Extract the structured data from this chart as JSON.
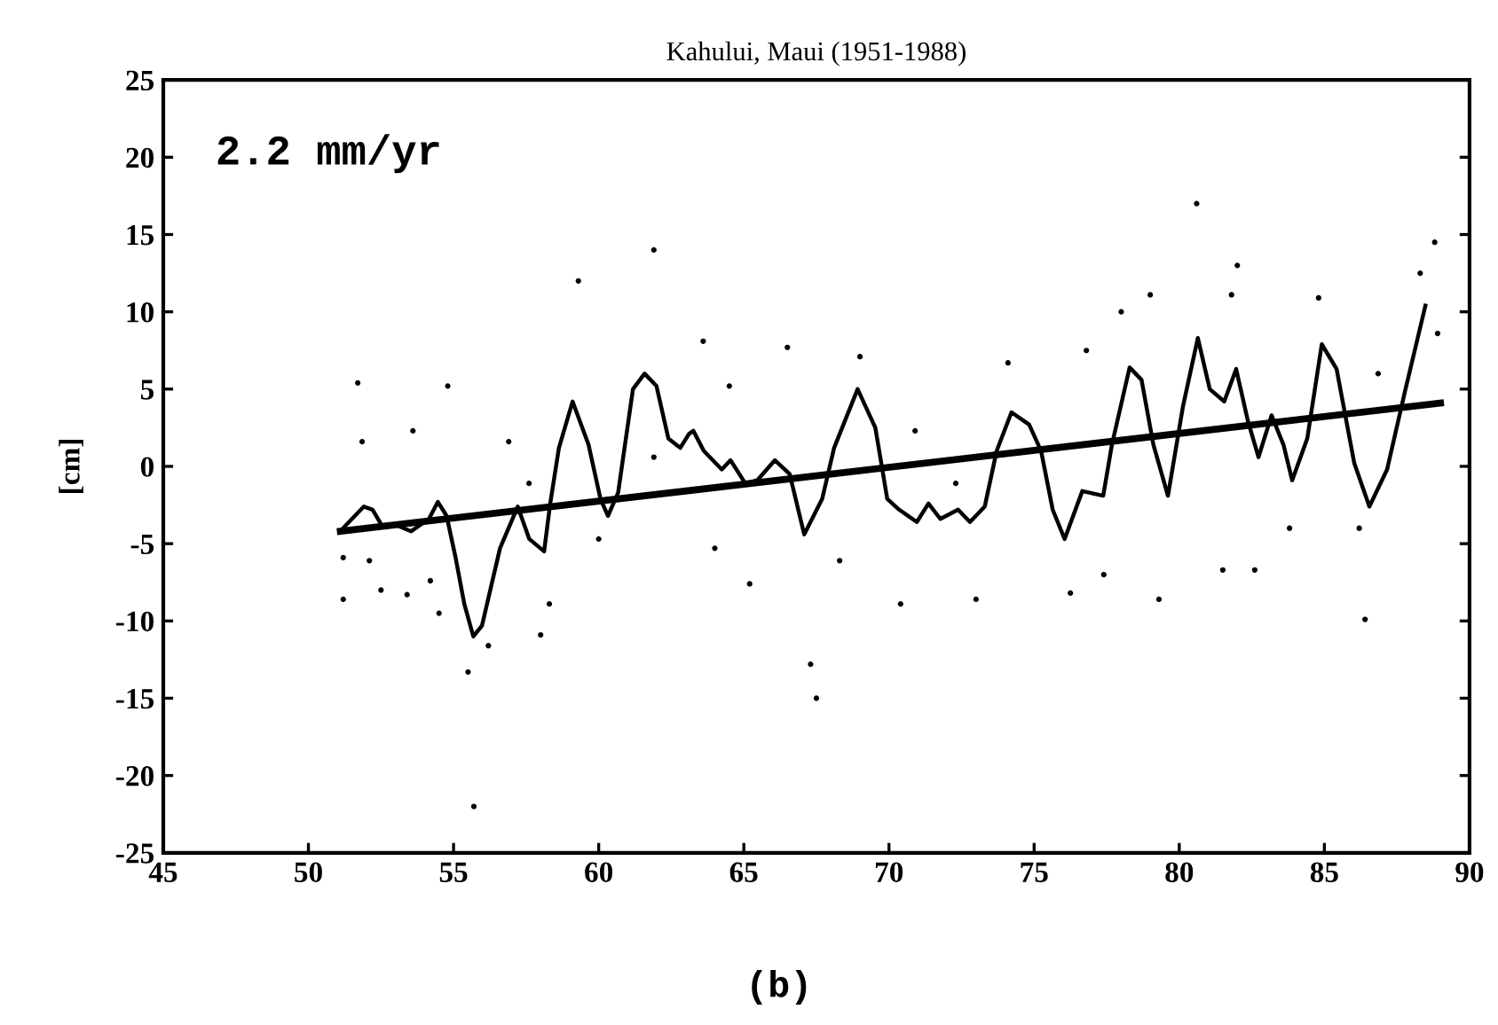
{
  "chart_data": {
    "type": "line",
    "title": "Kahului, Maui (1951-1988)",
    "ylabel": "[cm]",
    "annotations": [
      "2.2 mm/yr",
      "(b)"
    ],
    "xlim": [
      45,
      90
    ],
    "xticks": [
      45,
      50,
      55,
      60,
      65,
      70,
      75,
      80,
      85,
      90
    ],
    "ylim": [
      -25,
      25
    ],
    "yticks": [
      -25,
      -20,
      -15,
      -10,
      -5,
      0,
      5,
      10,
      15,
      20,
      25
    ],
    "grid": false,
    "series": [
      {
        "type": "scatter",
        "color": "#000000",
        "marker": "circle",
        "x": [
          51.7,
          51.85,
          51.2,
          51.2,
          52.1,
          52.5,
          53.6,
          53.4,
          54.8,
          54.2,
          54.5,
          55.5,
          55.7,
          56.2,
          56.9,
          58.0,
          58.3,
          57.6,
          59.3,
          61.9,
          61.9,
          60.0,
          63.6,
          66.5,
          64.5,
          69.0,
          74.1,
          65.2,
          67.3,
          67.5,
          70.4,
          76.25,
          64.0,
          68.3,
          73.0,
          70.9,
          72.3,
          88.3,
          88.8,
          86.4,
          79.0,
          78.0,
          76.8,
          81.8,
          82.0,
          80.6,
          83.8,
          86.2,
          82.6,
          81.5,
          79.3,
          77.4,
          86.85,
          88.9,
          84.8
        ],
        "values": [
          5.4,
          1.6,
          -5.9,
          -8.6,
          -6.1,
          -8.0,
          2.3,
          -8.3,
          5.2,
          -7.4,
          -9.5,
          -13.3,
          -22,
          -11.6,
          1.6,
          -10.9,
          -8.9,
          -1.1,
          12,
          0.6,
          14,
          -4.7,
          8.1,
          7.7,
          5.2,
          7.1,
          6.7,
          -7.6,
          -12.8,
          -15,
          -8.9,
          -8.2,
          -5.3,
          -6.1,
          -8.6,
          2.3,
          -1.1,
          12.5,
          14.5,
          -9.9,
          11.1,
          10.0,
          7.5,
          11.1,
          13,
          17,
          -4.0,
          -4.0,
          -6.7,
          -6.7,
          -8.6,
          -7.0,
          6.0,
          8.6,
          10.9
        ]
      },
      {
        "color": "#000000",
        "x": [
          51.09,
          51.91,
          52.21,
          52.52,
          53.03,
          53.54,
          54.15,
          54.46,
          54.76,
          55.07,
          55.37,
          55.68,
          55.98,
          56.19,
          56.6,
          57.21,
          57.61,
          58.12,
          58.33,
          58.63,
          59.1,
          59.65,
          60.06,
          60.32,
          60.67,
          61.18,
          61.58,
          61.99,
          62.4,
          62.81,
          63.11,
          63.26,
          63.62,
          64.24,
          64.54,
          65.05,
          65.46,
          66.07,
          66.58,
          67.08,
          67.7,
          68.11,
          68.92,
          69.53,
          69.94,
          70.35,
          70.96,
          71.36,
          71.77,
          72.38,
          72.79,
          73.3,
          73.71,
          74.22,
          74.83,
          75.24,
          75.64,
          76.05,
          76.66,
          77.38,
          77.68,
          78.29,
          78.7,
          79.11,
          79.61,
          80.13,
          80.64,
          81.05,
          81.55,
          81.96,
          82.37,
          82.73,
          83.18,
          83.59,
          83.89,
          84.41,
          84.91,
          85.42,
          86.03,
          86.55,
          87.16,
          87.77,
          88.48
        ],
        "values": [
          -4.2,
          -2.6,
          -2.8,
          -3.8,
          -3.8,
          -4.2,
          -3.4,
          -2.3,
          -3.2,
          -5.9,
          -8.9,
          -11.0,
          -10.3,
          -8.6,
          -5.3,
          -2.6,
          -4.7,
          -5.5,
          -2.4,
          1.2,
          4.2,
          1.4,
          -2.1,
          -3.2,
          -1.7,
          5.0,
          6.0,
          5.2,
          1.8,
          1.2,
          2.1,
          2.3,
          1.0,
          -0.2,
          0.4,
          -1.1,
          -0.9,
          0.4,
          -0.5,
          -4.4,
          -2.1,
          1.2,
          5.0,
          2.5,
          -2.1,
          -2.8,
          -3.6,
          -2.4,
          -3.4,
          -2.8,
          -3.6,
          -2.6,
          1.0,
          3.5,
          2.7,
          1.0,
          -2.8,
          -4.7,
          -1.6,
          -1.9,
          1.4,
          6.4,
          5.6,
          1.4,
          -1.9,
          3.9,
          8.3,
          5.0,
          4.2,
          6.3,
          2.9,
          0.6,
          3.3,
          1.4,
          -0.9,
          1.8,
          7.9,
          6.3,
          0.2,
          -2.6,
          -0.2,
          4.8,
          10.4
        ]
      },
      {
        "color": "#000000",
        "x": [
          51.1,
          89.0
        ],
        "values": [
          -4.2,
          4.1
        ]
      }
    ]
  }
}
